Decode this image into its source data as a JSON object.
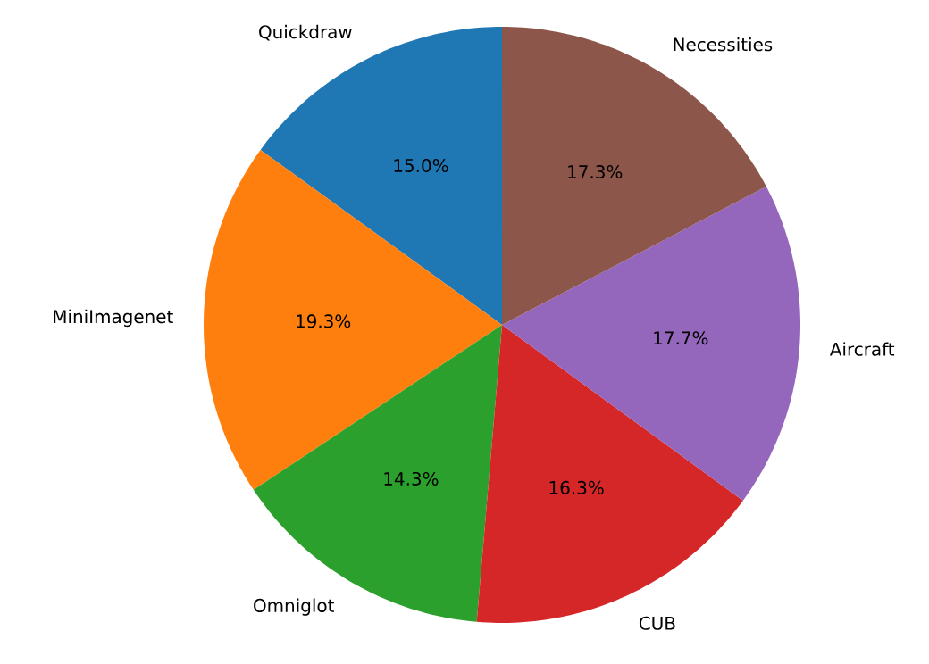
{
  "chart_data": {
    "type": "pie",
    "categories": [
      "Quickdraw",
      "MiniImagenet",
      "Omniglot",
      "CUB",
      "Aircraft",
      "Necessities"
    ],
    "values": [
      15.0,
      19.3,
      14.3,
      16.3,
      17.7,
      17.3
    ],
    "value_labels": [
      "15.0%",
      "19.3%",
      "14.3%",
      "16.3%",
      "17.7%",
      "17.3%"
    ],
    "colors": [
      "#1f77b4",
      "#ff7f0e",
      "#2ca02c",
      "#d62728",
      "#9467bd",
      "#8c564b"
    ]
  }
}
